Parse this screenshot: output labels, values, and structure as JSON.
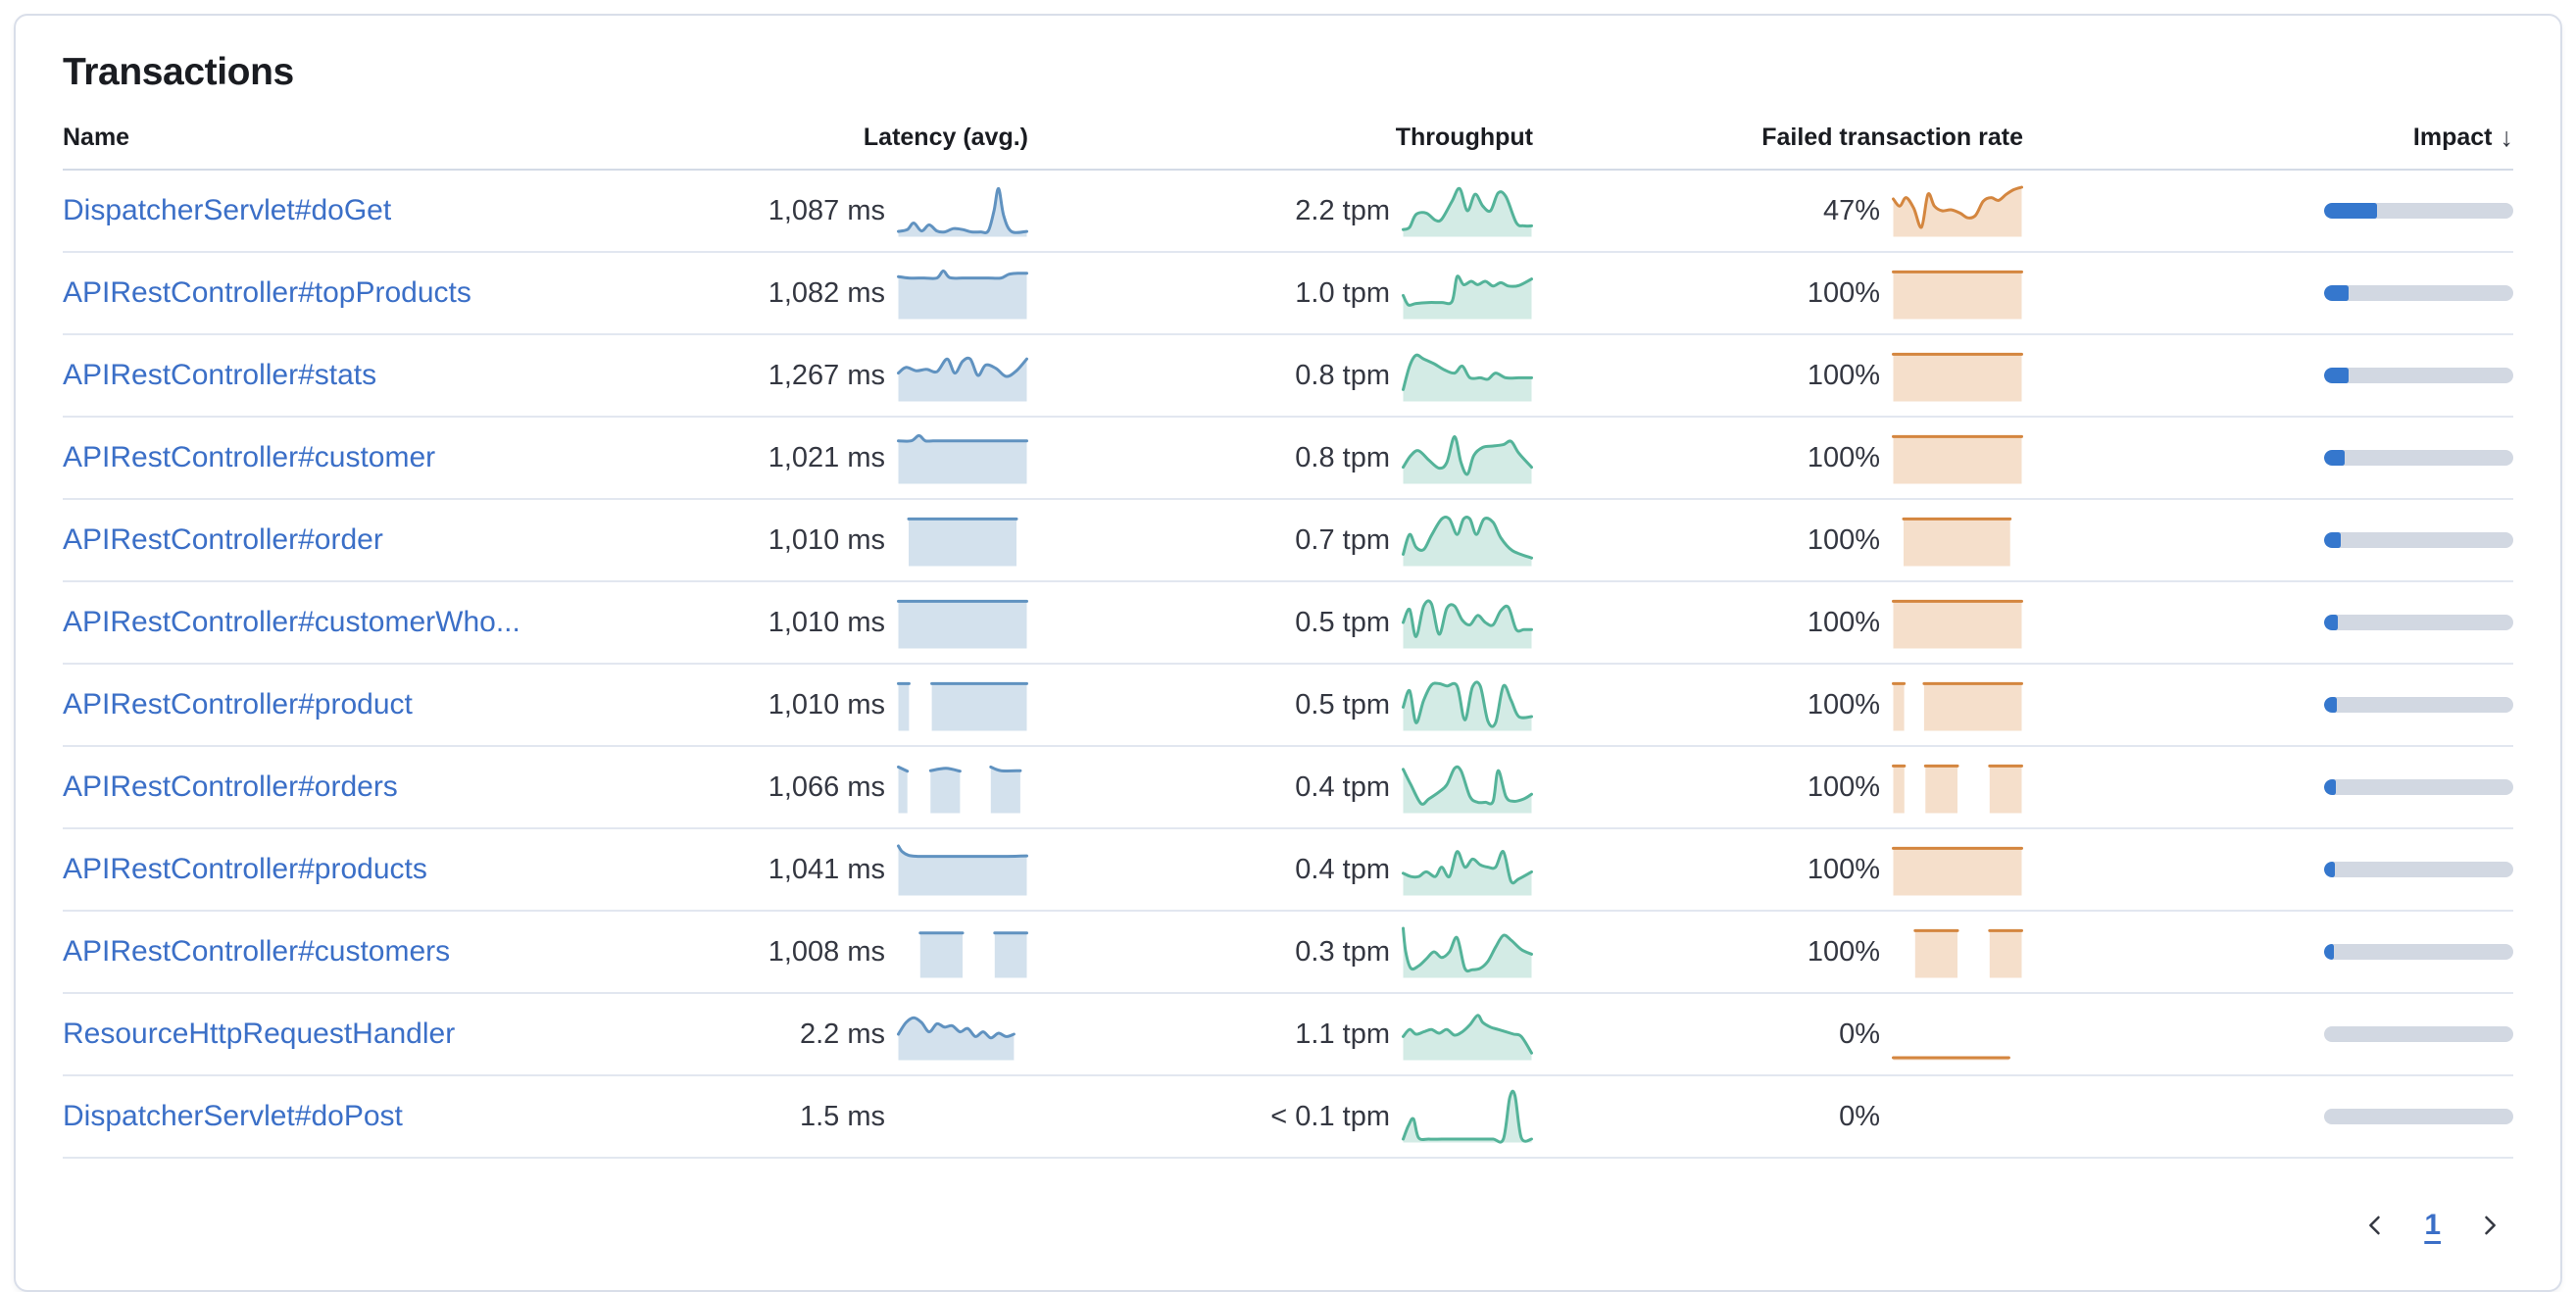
{
  "card": {
    "title": "Transactions"
  },
  "table": {
    "headers": {
      "name": "Name",
      "latency": "Latency (avg.)",
      "throughput": "Throughput",
      "failed": "Failed transaction rate",
      "impact": "Impact"
    },
    "sort": {
      "column": "impact",
      "direction": "desc",
      "glyph": "↓"
    }
  },
  "pagination": {
    "page": "1",
    "prev_icon": "chevron-left",
    "next_icon": "chevron-right"
  },
  "colors": {
    "heading": "#1a1c21",
    "text_dark": "#343741",
    "link_blue": "#3b6fc7",
    "card_border": "#d9dee9",
    "head_border": "#d3dae6",
    "row_border": "#e2e7f0",
    "latency_line": "#6092c0",
    "latency_fill": "#6092C047",
    "throughput_line": "#54b399",
    "throughput_fill": "#54B39942",
    "failed_line": "#d4863f",
    "failed_fill": "#DA8B4547",
    "impact_fill": "#3577cd",
    "impact_track": "#d2d8e2"
  },
  "rows": [
    {
      "name": "DispatcherServlet#doGet",
      "latency": "1,087 ms",
      "throughput": "2.2 tpm",
      "failed_rate": "47%",
      "impact_pct": 28,
      "latency_spark": [
        {
          "x": [
            0,
            0.07,
            0.12,
            0.18,
            0.24,
            0.3,
            0.36,
            0.43,
            0.5,
            0.57,
            0.64,
            0.7,
            0.745,
            0.78,
            0.82,
            0.88,
            1
          ],
          "y": [
            0.06,
            0.1,
            0.24,
            0.07,
            0.2,
            0.07,
            0.05,
            0.12,
            0.1,
            0.05,
            0.05,
            0.07,
            0.5,
            0.97,
            0.4,
            0.06,
            0.06
          ]
        }
      ],
      "throughput_spark": [
        {
          "x": [
            0,
            0.05,
            0.1,
            0.18,
            0.25,
            0.3,
            0.38,
            0.44,
            0.5,
            0.56,
            0.62,
            0.68,
            0.74,
            0.8,
            0.88,
            0.94,
            1
          ],
          "y": [
            0.1,
            0.15,
            0.42,
            0.45,
            0.3,
            0.32,
            0.7,
            0.97,
            0.5,
            0.85,
            0.6,
            0.5,
            0.88,
            0.8,
            0.25,
            0.18,
            0.18
          ]
        }
      ],
      "failed_spark": [
        {
          "x": [
            0,
            0.05,
            0.1,
            0.16,
            0.22,
            0.27,
            0.32,
            0.38,
            0.45,
            0.52,
            0.58,
            0.64,
            0.7,
            0.76,
            0.82,
            0.88,
            0.94,
            1
          ],
          "y": [
            0.75,
            0.6,
            0.78,
            0.55,
            0.15,
            0.85,
            0.6,
            0.5,
            0.52,
            0.45,
            0.35,
            0.4,
            0.7,
            0.78,
            0.72,
            0.85,
            0.95,
            1
          ]
        }
      ]
    },
    {
      "name": "APIRestController#topProducts",
      "latency": "1,082 ms",
      "throughput": "1.0 tpm",
      "failed_rate": "100%",
      "impact_pct": 13,
      "latency_spark": [
        {
          "x": [
            0,
            0.08,
            0.2,
            0.3,
            0.35,
            0.4,
            0.5,
            0.6,
            0.7,
            0.8,
            0.86,
            0.93,
            1
          ],
          "y": [
            0.85,
            0.82,
            0.82,
            0.82,
            0.97,
            0.83,
            0.82,
            0.82,
            0.82,
            0.82,
            0.9,
            0.92,
            0.92
          ]
        }
      ],
      "throughput_spark": [
        {
          "x": [
            0,
            0.04,
            0.1,
            0.2,
            0.3,
            0.38,
            0.42,
            0.47,
            0.53,
            0.58,
            0.64,
            0.7,
            0.76,
            0.82,
            0.9,
            1
          ],
          "y": [
            0.45,
            0.25,
            0.28,
            0.3,
            0.3,
            0.32,
            0.85,
            0.68,
            0.75,
            0.68,
            0.75,
            0.65,
            0.72,
            0.65,
            0.66,
            0.8
          ]
        }
      ],
      "failed_spark": [
        {
          "x": [
            0,
            1
          ],
          "y": [
            0.95,
            0.95
          ]
        }
      ]
    },
    {
      "name": "APIRestController#stats",
      "latency": "1,267 ms",
      "throughput": "0.8 tpm",
      "failed_rate": "100%",
      "impact_pct": 13,
      "latency_spark": [
        {
          "x": [
            0,
            0.06,
            0.14,
            0.22,
            0.3,
            0.38,
            0.44,
            0.5,
            0.56,
            0.62,
            0.68,
            0.76,
            0.84,
            0.92,
            1
          ],
          "y": [
            0.55,
            0.67,
            0.6,
            0.63,
            0.58,
            0.85,
            0.55,
            0.8,
            0.85,
            0.5,
            0.72,
            0.65,
            0.48,
            0.6,
            0.85
          ]
        }
      ],
      "throughput_spark": [
        {
          "x": [
            0,
            0.05,
            0.1,
            0.16,
            0.24,
            0.32,
            0.4,
            0.46,
            0.52,
            0.6,
            0.66,
            0.72,
            0.8,
            0.9,
            1
          ],
          "y": [
            0.2,
            0.7,
            0.93,
            0.85,
            0.75,
            0.62,
            0.55,
            0.7,
            0.45,
            0.45,
            0.42,
            0.55,
            0.45,
            0.45,
            0.45
          ]
        }
      ],
      "failed_spark": [
        {
          "x": [
            0,
            1
          ],
          "y": [
            0.95,
            0.95
          ]
        }
      ]
    },
    {
      "name": "APIRestController#customer",
      "latency": "1,021 ms",
      "throughput": "0.8 tpm",
      "failed_rate": "100%",
      "impact_pct": 11,
      "latency_spark": [
        {
          "x": [
            0,
            0.1,
            0.16,
            0.21,
            0.27,
            0.4,
            0.55,
            0.7,
            0.85,
            1
          ],
          "y": [
            0.86,
            0.86,
            0.97,
            0.86,
            0.86,
            0.86,
            0.86,
            0.86,
            0.86,
            0.86
          ]
        }
      ],
      "throughput_spark": [
        {
          "x": [
            0,
            0.06,
            0.12,
            0.2,
            0.28,
            0.34,
            0.4,
            0.45,
            0.5,
            0.55,
            0.62,
            0.7,
            0.78,
            0.84,
            0.9,
            1
          ],
          "y": [
            0.3,
            0.55,
            0.65,
            0.45,
            0.28,
            0.4,
            0.95,
            0.4,
            0.15,
            0.55,
            0.72,
            0.75,
            0.78,
            0.85,
            0.6,
            0.3
          ]
        }
      ],
      "failed_spark": [
        {
          "x": [
            0,
            1
          ],
          "y": [
            0.95,
            0.95
          ]
        }
      ]
    },
    {
      "name": "APIRestController#order",
      "latency": "1,010 ms",
      "throughput": "0.7 tpm",
      "failed_rate": "100%",
      "impact_pct": 9,
      "latency_spark": [
        {
          "x": [
            0.08,
            0.92
          ],
          "y": [
            0.95,
            0.95
          ]
        }
      ],
      "throughput_spark": [
        {
          "x": [
            0,
            0.05,
            0.1,
            0.16,
            0.22,
            0.3,
            0.36,
            0.42,
            0.47,
            0.52,
            0.57,
            0.63,
            0.7,
            0.76,
            0.85,
            1
          ],
          "y": [
            0.2,
            0.62,
            0.35,
            0.3,
            0.6,
            0.95,
            0.95,
            0.62,
            0.95,
            0.95,
            0.62,
            0.95,
            0.88,
            0.55,
            0.28,
            0.12
          ]
        }
      ],
      "failed_spark": [
        {
          "x": [
            0.08,
            0.91
          ],
          "y": [
            0.95,
            0.95
          ]
        }
      ]
    },
    {
      "name": "APIRestController#customerWho...",
      "latency": "1,010 ms",
      "throughput": "0.5 tpm",
      "failed_rate": "100%",
      "impact_pct": 7,
      "latency_spark": [
        {
          "x": [
            0,
            1
          ],
          "y": [
            0.95,
            0.95
          ]
        }
      ],
      "throughput_spark": [
        {
          "x": [
            0,
            0.05,
            0.1,
            0.16,
            0.22,
            0.28,
            0.34,
            0.4,
            0.46,
            0.52,
            0.58,
            0.64,
            0.7,
            0.76,
            0.82,
            0.88,
            0.94,
            1
          ],
          "y": [
            0.5,
            0.78,
            0.2,
            0.85,
            0.9,
            0.25,
            0.8,
            0.85,
            0.55,
            0.45,
            0.65,
            0.5,
            0.45,
            0.75,
            0.82,
            0.35,
            0.35,
            0.35
          ]
        }
      ],
      "failed_spark": [
        {
          "x": [
            0,
            1
          ],
          "y": [
            0.95,
            0.95
          ]
        }
      ]
    },
    {
      "name": "APIRestController#product",
      "latency": "1,010 ms",
      "throughput": "0.5 tpm",
      "failed_rate": "100%",
      "impact_pct": 6.5,
      "latency_spark": [
        {
          "x": [
            0,
            0.083
          ],
          "y": [
            0.95,
            0.95
          ]
        },
        {
          "x": [
            0.26,
            1
          ],
          "y": [
            0.95,
            0.95
          ]
        }
      ],
      "throughput_spark": [
        {
          "x": [
            0,
            0.05,
            0.1,
            0.16,
            0.22,
            0.28,
            0.34,
            0.42,
            0.48,
            0.54,
            0.6,
            0.66,
            0.72,
            0.78,
            0.84,
            0.9,
            1
          ],
          "y": [
            0.45,
            0.8,
            0.12,
            0.6,
            0.92,
            0.95,
            0.9,
            0.9,
            0.18,
            0.88,
            0.9,
            0.15,
            0.12,
            0.9,
            0.6,
            0.25,
            0.25
          ]
        }
      ],
      "failed_spark": [
        {
          "x": [
            0,
            0.085
          ],
          "y": [
            0.95,
            0.95
          ]
        },
        {
          "x": [
            0.24,
            1
          ],
          "y": [
            0.95,
            0.95
          ]
        }
      ]
    },
    {
      "name": "APIRestController#orders",
      "latency": "1,066 ms",
      "throughput": "0.4 tpm",
      "failed_rate": "100%",
      "impact_pct": 6,
      "latency_spark": [
        {
          "x": [
            0,
            0.07
          ],
          "y": [
            0.93,
            0.84
          ]
        },
        {
          "x": [
            0.25,
            0.37,
            0.48
          ],
          "y": [
            0.85,
            0.9,
            0.84
          ]
        },
        {
          "x": [
            0.72,
            0.8,
            0.95
          ],
          "y": [
            0.93,
            0.85,
            0.85
          ]
        }
      ],
      "throughput_spark": [
        {
          "x": [
            0,
            0.06,
            0.14,
            0.2,
            0.28,
            0.34,
            0.4,
            0.45,
            0.52,
            0.58,
            0.64,
            0.7,
            0.74,
            0.8,
            0.86,
            0.94,
            1
          ],
          "y": [
            0.88,
            0.55,
            0.15,
            0.25,
            0.4,
            0.55,
            0.9,
            0.85,
            0.3,
            0.18,
            0.18,
            0.2,
            0.85,
            0.3,
            0.2,
            0.25,
            0.35
          ]
        }
      ],
      "failed_spark": [
        {
          "x": [
            0,
            0.086
          ],
          "y": [
            0.95,
            0.95
          ]
        },
        {
          "x": [
            0.25,
            0.5
          ],
          "y": [
            0.95,
            0.95
          ]
        },
        {
          "x": [
            0.75,
            1
          ],
          "y": [
            0.95,
            0.95
          ]
        }
      ]
    },
    {
      "name": "APIRestController#products",
      "latency": "1,041 ms",
      "throughput": "0.4 tpm",
      "failed_rate": "100%",
      "impact_pct": 5.7,
      "latency_spark": [
        {
          "x": [
            0,
            0.03,
            0.08,
            0.15,
            0.3,
            0.5,
            0.7,
            0.85,
            1
          ],
          "y": [
            1,
            0.88,
            0.8,
            0.78,
            0.78,
            0.78,
            0.78,
            0.78,
            0.79
          ]
        }
      ],
      "throughput_spark": [
        {
          "x": [
            0,
            0.06,
            0.12,
            0.18,
            0.25,
            0.3,
            0.36,
            0.42,
            0.48,
            0.54,
            0.6,
            0.66,
            0.72,
            0.78,
            0.84,
            0.9,
            1
          ],
          "y": [
            0.42,
            0.35,
            0.35,
            0.45,
            0.35,
            0.55,
            0.35,
            0.88,
            0.55,
            0.72,
            0.6,
            0.55,
            0.55,
            0.88,
            0.25,
            0.3,
            0.45
          ]
        }
      ],
      "failed_spark": [
        {
          "x": [
            0,
            1
          ],
          "y": [
            0.95,
            0.95
          ]
        }
      ]
    },
    {
      "name": "APIRestController#customers",
      "latency": "1,008 ms",
      "throughput": "0.3 tpm",
      "failed_rate": "100%",
      "impact_pct": 5,
      "latency_spark": [
        {
          "x": [
            0.17,
            0.5
          ],
          "y": [
            0.9,
            0.9
          ]
        },
        {
          "x": [
            0.75,
            1
          ],
          "y": [
            0.9,
            0.9
          ]
        }
      ],
      "throughput_spark": [
        {
          "x": [
            0,
            0.02,
            0.06,
            0.12,
            0.18,
            0.24,
            0.3,
            0.36,
            0.42,
            0.48,
            0.54,
            0.6,
            0.66,
            0.72,
            0.78,
            0.84,
            0.92,
            1
          ],
          "y": [
            1,
            0.5,
            0.15,
            0.2,
            0.35,
            0.5,
            0.38,
            0.5,
            0.8,
            0.15,
            0.12,
            0.15,
            0.3,
            0.6,
            0.85,
            0.75,
            0.55,
            0.45
          ]
        }
      ],
      "failed_spark": [
        {
          "x": [
            0.17,
            0.5
          ],
          "y": [
            0.95,
            0.95
          ]
        },
        {
          "x": [
            0.75,
            1
          ],
          "y": [
            0.95,
            0.95
          ]
        }
      ]
    },
    {
      "name": "ResourceHttpRequestHandler",
      "latency": "2.2 ms",
      "throughput": "1.1 tpm",
      "failed_rate": "0%",
      "impact_pct": 0,
      "latency_spark": [
        {
          "x": [
            0,
            0.06,
            0.12,
            0.18,
            0.24,
            0.3,
            0.36,
            0.42,
            0.48,
            0.54,
            0.6,
            0.66,
            0.72,
            0.78,
            0.84,
            0.9
          ],
          "y": [
            0.5,
            0.75,
            0.85,
            0.75,
            0.55,
            0.72,
            0.65,
            0.68,
            0.55,
            0.62,
            0.45,
            0.55,
            0.42,
            0.52,
            0.45,
            0.5
          ]
        }
      ],
      "throughput_spark": [
        {
          "x": [
            0,
            0.05,
            0.1,
            0.16,
            0.22,
            0.28,
            0.34,
            0.4,
            0.46,
            0.52,
            0.58,
            0.62,
            0.68,
            0.74,
            0.8,
            0.86,
            0.92,
            1
          ],
          "y": [
            0.45,
            0.6,
            0.5,
            0.55,
            0.6,
            0.52,
            0.6,
            0.48,
            0.55,
            0.7,
            0.9,
            0.75,
            0.65,
            0.6,
            0.55,
            0.5,
            0.45,
            0.1
          ]
        }
      ],
      "failed_spark": [
        {
          "x": [
            0,
            0.9
          ],
          "y": [
            0,
            0
          ]
        }
      ]
    },
    {
      "name": "DispatcherServlet#doPost",
      "latency": "1.5 ms",
      "throughput": "< 0.1 tpm",
      "failed_rate": "0%",
      "impact_pct": 0,
      "latency_spark": [],
      "throughput_spark": [
        {
          "x": [
            0,
            0.04,
            0.08,
            0.12,
            0.2,
            0.3,
            0.4,
            0.5,
            0.6,
            0.7,
            0.78,
            0.83,
            0.87,
            0.92,
            1
          ],
          "y": [
            0.02,
            0.3,
            0.45,
            0.05,
            0.02,
            0.02,
            0.02,
            0.02,
            0.02,
            0.02,
            0.02,
            0.9,
            0.95,
            0.05,
            0.02
          ]
        }
      ],
      "failed_spark": []
    }
  ]
}
